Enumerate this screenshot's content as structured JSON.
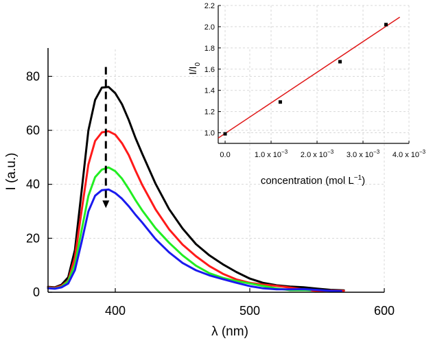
{
  "colors": {
    "background": "#ffffff",
    "axis": "#000000",
    "grid": "#d8d8d8",
    "fit_line": "#e01818",
    "arrow": "#000000"
  },
  "chart_data": [
    {
      "type": "line",
      "title": "",
      "xlabel": "λ (nm)",
      "ylabel": "I (a.u.)",
      "xlim": [
        350,
        600
      ],
      "ylim": [
        0,
        90
      ],
      "xticks": [
        400,
        500,
        600
      ],
      "yticks": [
        0,
        20,
        40,
        60,
        80
      ],
      "xtick_labels": [
        "400",
        "500",
        "600"
      ],
      "ytick_labels": [
        "0",
        "20",
        "40",
        "60",
        "80"
      ],
      "grid": true,
      "annotation": "dashed downward arrow at the emission maximum (~393 nm) indicating intensity decrease",
      "series": [
        {
          "name": "black",
          "color": "#000000",
          "peak": 76,
          "end": 570,
          "x": [
            350,
            355,
            360,
            365,
            370,
            375,
            380,
            385,
            390,
            395,
            400,
            405,
            410,
            415,
            420,
            430,
            440,
            450,
            460,
            470,
            480,
            490,
            500,
            510,
            520,
            530,
            540,
            550,
            560,
            570
          ],
          "y": [
            2.0,
            1.8,
            2.8,
            5.5,
            16,
            38,
            60,
            71,
            75.5,
            76,
            74,
            70,
            64,
            57,
            51,
            40,
            31,
            24,
            18,
            13.5,
            10,
            7.3,
            5.2,
            3.8,
            2.8,
            2.0,
            1.5,
            1.1,
            0.9,
            0.7
          ]
        },
        {
          "name": "red",
          "color": "#ff1a1a",
          "peak": 60,
          "end": 572,
          "x": [
            350,
            355,
            360,
            365,
            370,
            375,
            380,
            385,
            390,
            395,
            400,
            405,
            410,
            415,
            420,
            430,
            440,
            450,
            460,
            470,
            480,
            490,
            500,
            510,
            520,
            530,
            540,
            550,
            560,
            570
          ],
          "y": [
            1.8,
            1.6,
            2.4,
            4.6,
            13,
            30,
            47,
            56,
            59.5,
            60,
            58.5,
            55,
            50.5,
            45,
            40,
            31,
            23.5,
            17.5,
            13,
            9.5,
            7.0,
            5.1,
            3.7,
            2.7,
            2.0,
            1.5,
            1.1,
            0.8,
            0.6,
            0.5
          ]
        },
        {
          "name": "green",
          "color": "#22ee22",
          "peak": 46,
          "end": 545,
          "x": [
            350,
            355,
            360,
            365,
            370,
            375,
            380,
            385,
            390,
            395,
            400,
            405,
            410,
            415,
            420,
            430,
            440,
            450,
            460,
            470,
            480,
            490,
            500,
            510,
            520,
            530,
            540,
            545
          ],
          "y": [
            1.6,
            1.4,
            2.0,
            3.8,
            10,
            23,
            36,
            43,
            45.5,
            46,
            44.5,
            42,
            38.5,
            34.5,
            30.5,
            23.5,
            18,
            13.5,
            10,
            7.4,
            5.5,
            4.0,
            2.9,
            2.1,
            1.5,
            1.1,
            0.8,
            0.7
          ]
        },
        {
          "name": "blue",
          "color": "#1a1aee",
          "peak": 38,
          "end": 568,
          "x": [
            350,
            355,
            360,
            365,
            370,
            375,
            380,
            385,
            390,
            395,
            400,
            405,
            410,
            415,
            420,
            430,
            440,
            450,
            460,
            470,
            480,
            490,
            500,
            510,
            520,
            530,
            540,
            550,
            560,
            568
          ],
          "y": [
            1.5,
            1.3,
            1.8,
            3.2,
            8.5,
            19,
            30,
            35.5,
            37.5,
            38,
            37,
            35,
            32,
            28.5,
            25.5,
            19.5,
            15,
            11.2,
            8.3,
            6.1,
            4.5,
            3.3,
            2.4,
            1.8,
            1.3,
            1.0,
            0.8,
            0.6,
            0.5,
            0.4
          ]
        }
      ]
    },
    {
      "type": "scatter",
      "title": "",
      "xlabel": "concentration (mol L",
      "xlabel_sup": "−1",
      "xlabel_close": ")",
      "ylabel": "I/I",
      "ylabel_sub": "0",
      "xlim": [
        -0.00015,
        0.004
      ],
      "ylim": [
        0.9,
        2.2
      ],
      "xticks": [
        0,
        0.001,
        0.002,
        0.003,
        0.004
      ],
      "xtick_labels": [
        {
          "base": "0.0",
          "exp": ""
        },
        {
          "base": "1.0 x 10",
          "exp": "−3"
        },
        {
          "base": "2.0 x 10",
          "exp": "−3"
        },
        {
          "base": "3.0 x 10",
          "exp": "−3"
        },
        {
          "base": "4.0 x 10",
          "exp": "−3"
        }
      ],
      "yticks": [
        1.0,
        1.2,
        1.4,
        1.6,
        1.8,
        2.0,
        2.2
      ],
      "ytick_labels": [
        "1.0",
        "1.2",
        "1.4",
        "1.6",
        "1.8",
        "2.0",
        "2.2"
      ],
      "grid": true,
      "points": {
        "x": [
          0,
          0.0012,
          0.0025,
          0.0035
        ],
        "y": [
          0.99,
          1.29,
          1.67,
          2.02
        ]
      },
      "fit_line": {
        "x": [
          -0.00015,
          0.0038
        ],
        "y": [
          0.95,
          2.09
        ]
      }
    }
  ]
}
